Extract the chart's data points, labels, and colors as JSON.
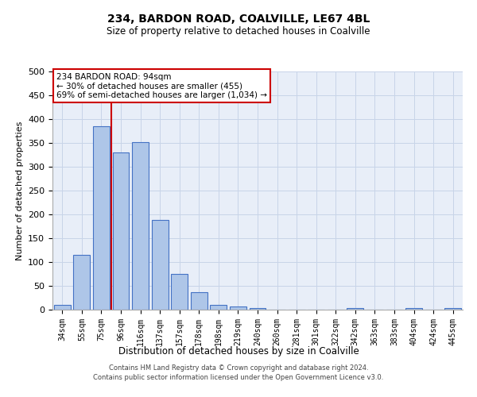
{
  "title1": "234, BARDON ROAD, COALVILLE, LE67 4BL",
  "title2": "Size of property relative to detached houses in Coalville",
  "xlabel": "Distribution of detached houses by size in Coalville",
  "ylabel": "Number of detached properties",
  "bar_labels": [
    "34sqm",
    "55sqm",
    "75sqm",
    "96sqm",
    "116sqm",
    "137sqm",
    "157sqm",
    "178sqm",
    "198sqm",
    "219sqm",
    "240sqm",
    "260sqm",
    "281sqm",
    "301sqm",
    "322sqm",
    "342sqm",
    "363sqm",
    "383sqm",
    "404sqm",
    "424sqm",
    "445sqm"
  ],
  "bar_values": [
    10,
    115,
    385,
    330,
    352,
    188,
    75,
    37,
    10,
    7,
    3,
    0,
    0,
    0,
    0,
    4,
    0,
    0,
    4,
    0,
    4
  ],
  "bar_color": "#aec6e8",
  "bar_edge_color": "#4472c4",
  "grid_color": "#c8d4e8",
  "bg_color": "#e8eef8",
  "annotation_text": "234 BARDON ROAD: 94sqm\n← 30% of detached houses are smaller (455)\n69% of semi-detached houses are larger (1,034) →",
  "annotation_box_color": "#ffffff",
  "annotation_border_color": "#cc0000",
  "footer1": "Contains HM Land Registry data © Crown copyright and database right 2024.",
  "footer2": "Contains public sector information licensed under the Open Government Licence v3.0.",
  "ylim": [
    0,
    500
  ],
  "yticks": [
    0,
    50,
    100,
    150,
    200,
    250,
    300,
    350,
    400,
    450,
    500
  ],
  "red_line_index": 2.5
}
